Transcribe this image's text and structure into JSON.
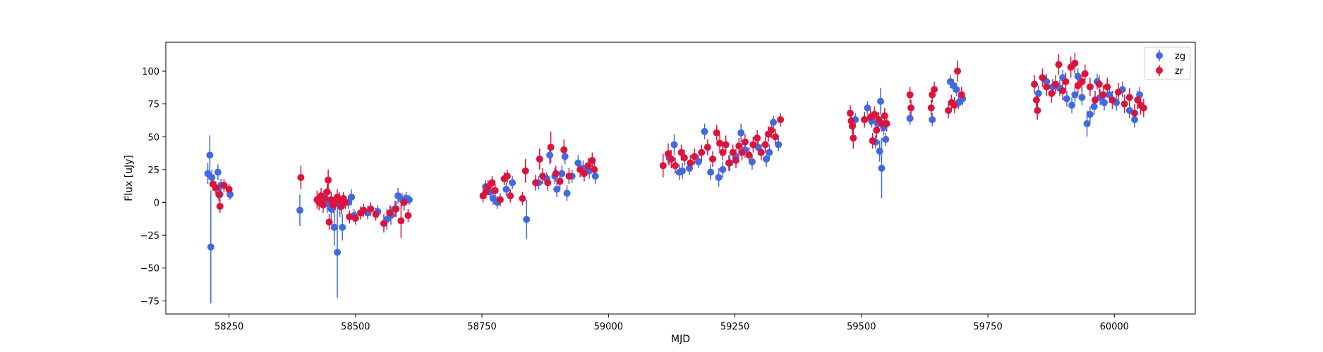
{
  "chart_data": {
    "type": "scatter",
    "title": "",
    "xlabel": "MJD",
    "ylabel": "Flux [uJy]",
    "xlim": [
      58125,
      60160
    ],
    "ylim": [
      -85,
      122
    ],
    "xticks": [
      58250,
      58500,
      58750,
      59000,
      59250,
      59500,
      59750,
      60000
    ],
    "yticks": [
      -75,
      -50,
      -25,
      0,
      25,
      50,
      75,
      100
    ],
    "grid": false,
    "legend_position": "top-right",
    "error_bars": true,
    "series": [
      {
        "name": "zg",
        "color": "#4169e1",
        "points": [
          [
            58208,
            22,
            8
          ],
          [
            58212,
            36,
            15
          ],
          [
            58214,
            -34,
            43
          ],
          [
            58216,
            19,
            6
          ],
          [
            58228,
            23,
            6
          ],
          [
            58232,
            6,
            5
          ],
          [
            58234,
            13,
            5
          ],
          [
            58252,
            6,
            4
          ],
          [
            58390,
            -6,
            12
          ],
          [
            58430,
            2,
            5
          ],
          [
            58437,
            3,
            6
          ],
          [
            58444,
            -1,
            7
          ],
          [
            58452,
            -5,
            8
          ],
          [
            58458,
            -19,
            14
          ],
          [
            58464,
            -38,
            35
          ],
          [
            58469,
            -3,
            8
          ],
          [
            58474,
            -19,
            10
          ],
          [
            58486,
            0,
            5
          ],
          [
            58492,
            4,
            6
          ],
          [
            58497,
            -10,
            5
          ],
          [
            58524,
            -8,
            5
          ],
          [
            58544,
            -7,
            5
          ],
          [
            58562,
            -13,
            8
          ],
          [
            58570,
            -10,
            7
          ],
          [
            58578,
            -5,
            6
          ],
          [
            58584,
            5,
            6
          ],
          [
            58592,
            2,
            5
          ],
          [
            58600,
            3,
            5
          ],
          [
            58606,
            2,
            4
          ],
          [
            58757,
            12,
            5
          ],
          [
            58766,
            8,
            5
          ],
          [
            58772,
            3,
            5
          ],
          [
            58780,
            0,
            5
          ],
          [
            58798,
            10,
            5
          ],
          [
            58810,
            15,
            5
          ],
          [
            58838,
            -13,
            15
          ],
          [
            58862,
            15,
            5
          ],
          [
            58878,
            18,
            5
          ],
          [
            58884,
            36,
            7
          ],
          [
            58894,
            20,
            6
          ],
          [
            58898,
            10,
            6
          ],
          [
            58908,
            22,
            6
          ],
          [
            58914,
            35,
            6
          ],
          [
            58918,
            7,
            6
          ],
          [
            58928,
            20,
            5
          ],
          [
            58940,
            30,
            6
          ],
          [
            58950,
            26,
            6
          ],
          [
            58962,
            24,
            6
          ],
          [
            58974,
            20,
            6
          ],
          [
            59120,
            34,
            6
          ],
          [
            59130,
            44,
            8
          ],
          [
            59140,
            23,
            6
          ],
          [
            59146,
            24,
            6
          ],
          [
            59160,
            26,
            5
          ],
          [
            59178,
            31,
            5
          ],
          [
            59190,
            54,
            6
          ],
          [
            59202,
            23,
            6
          ],
          [
            59218,
            19,
            7
          ],
          [
            59226,
            25,
            6
          ],
          [
            59240,
            30,
            6
          ],
          [
            59252,
            35,
            6
          ],
          [
            59262,
            53,
            7
          ],
          [
            59270,
            40,
            6
          ],
          [
            59284,
            31,
            6
          ],
          [
            59296,
            42,
            6
          ],
          [
            59312,
            33,
            6
          ],
          [
            59318,
            38,
            6
          ],
          [
            59326,
            61,
            5
          ],
          [
            59336,
            44,
            5
          ],
          [
            59488,
            63,
            5
          ],
          [
            59506,
            63,
            5
          ],
          [
            59512,
            72,
            5
          ],
          [
            59520,
            62,
            5
          ],
          [
            59528,
            46,
            5
          ],
          [
            59532,
            60,
            5
          ],
          [
            59536,
            39,
            8
          ],
          [
            59538,
            77,
            10
          ],
          [
            59540,
            26,
            23
          ],
          [
            59544,
            57,
            6
          ],
          [
            59548,
            48,
            5
          ],
          [
            59596,
            64,
            5
          ],
          [
            59640,
            63,
            5
          ],
          [
            59676,
            92,
            5
          ],
          [
            59682,
            89,
            5
          ],
          [
            59688,
            86,
            5
          ],
          [
            59692,
            76,
            5
          ],
          [
            59700,
            79,
            5
          ],
          [
            59850,
            83,
            6
          ],
          [
            59866,
            92,
            6
          ],
          [
            59878,
            88,
            6
          ],
          [
            59892,
            87,
            6
          ],
          [
            59898,
            95,
            6
          ],
          [
            59906,
            79,
            6
          ],
          [
            59916,
            74,
            6
          ],
          [
            59922,
            82,
            6
          ],
          [
            59928,
            96,
            6
          ],
          [
            59936,
            80,
            6
          ],
          [
            59946,
            60,
            10
          ],
          [
            59952,
            67,
            6
          ],
          [
            59960,
            73,
            6
          ],
          [
            59966,
            92,
            6
          ],
          [
            59972,
            80,
            6
          ],
          [
            59980,
            76,
            6
          ],
          [
            59990,
            82,
            6
          ],
          [
            60004,
            76,
            6
          ],
          [
            60016,
            86,
            6
          ],
          [
            60030,
            70,
            6
          ],
          [
            60040,
            63,
            6
          ],
          [
            60050,
            82,
            6
          ]
        ]
      },
      {
        "name": "zr",
        "color": "#dc143c",
        "points": [
          [
            58218,
            14,
            5
          ],
          [
            58224,
            11,
            5
          ],
          [
            58230,
            6,
            5
          ],
          [
            58232,
            -3,
            5
          ],
          [
            58240,
            13,
            5
          ],
          [
            58250,
            10,
            4
          ],
          [
            58392,
            19,
            9
          ],
          [
            58424,
            2,
            7
          ],
          [
            58428,
            0,
            6
          ],
          [
            58432,
            5,
            6
          ],
          [
            58436,
            -2,
            6
          ],
          [
            58440,
            3,
            6
          ],
          [
            58444,
            8,
            6
          ],
          [
            58446,
            17,
            8
          ],
          [
            58448,
            -15,
            6
          ],
          [
            58452,
            2,
            6
          ],
          [
            58456,
            -2,
            6
          ],
          [
            58460,
            0,
            6
          ],
          [
            58464,
            4,
            6
          ],
          [
            58468,
            2,
            6
          ],
          [
            58472,
            -3,
            6
          ],
          [
            58476,
            3,
            5
          ],
          [
            58480,
            0,
            5
          ],
          [
            58488,
            -11,
            5
          ],
          [
            58500,
            -12,
            5
          ],
          [
            58510,
            -8,
            5
          ],
          [
            58516,
            -6,
            5
          ],
          [
            58530,
            -5,
            5
          ],
          [
            58540,
            -9,
            5
          ],
          [
            58556,
            -16,
            7
          ],
          [
            58568,
            -8,
            6
          ],
          [
            58580,
            -5,
            6
          ],
          [
            58590,
            -14,
            13
          ],
          [
            58596,
            0,
            6
          ],
          [
            58604,
            -10,
            5
          ],
          [
            58752,
            5,
            5
          ],
          [
            58758,
            8,
            5
          ],
          [
            58762,
            12,
            5
          ],
          [
            58770,
            15,
            5
          ],
          [
            58776,
            9,
            5
          ],
          [
            58786,
            2,
            5
          ],
          [
            58794,
            18,
            5
          ],
          [
            58800,
            20,
            5
          ],
          [
            58806,
            5,
            5
          ],
          [
            58830,
            3,
            5
          ],
          [
            58836,
            24,
            9
          ],
          [
            58856,
            15,
            6
          ],
          [
            58864,
            33,
            8
          ],
          [
            58870,
            20,
            6
          ],
          [
            58880,
            15,
            6
          ],
          [
            58886,
            42,
            12
          ],
          [
            58896,
            22,
            6
          ],
          [
            58904,
            16,
            6
          ],
          [
            58912,
            40,
            8
          ],
          [
            58922,
            20,
            6
          ],
          [
            58944,
            25,
            6
          ],
          [
            58952,
            22,
            6
          ],
          [
            58960,
            28,
            6
          ],
          [
            58968,
            32,
            6
          ],
          [
            58972,
            25,
            6
          ],
          [
            59108,
            28,
            9
          ],
          [
            59118,
            37,
            8
          ],
          [
            59124,
            33,
            7
          ],
          [
            59132,
            28,
            6
          ],
          [
            59144,
            38,
            6
          ],
          [
            59150,
            34,
            6
          ],
          [
            59162,
            30,
            6
          ],
          [
            59170,
            35,
            6
          ],
          [
            59184,
            38,
            6
          ],
          [
            59196,
            42,
            6
          ],
          [
            59206,
            33,
            6
          ],
          [
            59214,
            53,
            6
          ],
          [
            59220,
            45,
            7
          ],
          [
            59226,
            38,
            6
          ],
          [
            59232,
            44,
            7
          ],
          [
            59238,
            30,
            6
          ],
          [
            59246,
            38,
            6
          ],
          [
            59252,
            32,
            6
          ],
          [
            59258,
            43,
            6
          ],
          [
            59264,
            38,
            6
          ],
          [
            59270,
            46,
            6
          ],
          [
            59278,
            36,
            6
          ],
          [
            59286,
            44,
            6
          ],
          [
            59294,
            49,
            6
          ],
          [
            59302,
            38,
            6
          ],
          [
            59310,
            44,
            6
          ],
          [
            59316,
            52,
            6
          ],
          [
            59322,
            55,
            6
          ],
          [
            59330,
            50,
            6
          ],
          [
            59340,
            63,
            5
          ],
          [
            59478,
            68,
            6
          ],
          [
            59480,
            62,
            6
          ],
          [
            59482,
            58,
            6
          ],
          [
            59484,
            49,
            8
          ],
          [
            59506,
            63,
            6
          ],
          [
            59518,
            65,
            6
          ],
          [
            59522,
            47,
            6
          ],
          [
            59526,
            67,
            6
          ],
          [
            59530,
            55,
            6
          ],
          [
            59534,
            63,
            6
          ],
          [
            59540,
            60,
            6
          ],
          [
            59546,
            66,
            6
          ],
          [
            59550,
            60,
            6
          ],
          [
            59596,
            82,
            6
          ],
          [
            59598,
            72,
            6
          ],
          [
            59638,
            72,
            6
          ],
          [
            59640,
            82,
            6
          ],
          [
            59644,
            86,
            6
          ],
          [
            59672,
            70,
            6
          ],
          [
            59678,
            76,
            6
          ],
          [
            59684,
            74,
            6
          ],
          [
            59690,
            100,
            8
          ],
          [
            59698,
            82,
            6
          ],
          [
            59842,
            90,
            7
          ],
          [
            59846,
            78,
            7
          ],
          [
            59848,
            70,
            7
          ],
          [
            59858,
            95,
            7
          ],
          [
            59866,
            88,
            7
          ],
          [
            59876,
            83,
            7
          ],
          [
            59884,
            90,
            7
          ],
          [
            59890,
            105,
            8
          ],
          [
            59898,
            85,
            7
          ],
          [
            59904,
            92,
            7
          ],
          [
            59914,
            103,
            8
          ],
          [
            59922,
            106,
            8
          ],
          [
            59928,
            89,
            7
          ],
          [
            59936,
            92,
            7
          ],
          [
            59942,
            98,
            7
          ],
          [
            59952,
            88,
            7
          ],
          [
            59962,
            78,
            7
          ],
          [
            59970,
            90,
            7
          ],
          [
            59978,
            82,
            7
          ],
          [
            59986,
            88,
            7
          ],
          [
            59996,
            78,
            7
          ],
          [
            60008,
            84,
            7
          ],
          [
            60020,
            75,
            7
          ],
          [
            60030,
            80,
            7
          ],
          [
            60040,
            68,
            7
          ],
          [
            60046,
            78,
            7
          ],
          [
            60052,
            74,
            7
          ],
          [
            60058,
            72,
            7
          ]
        ]
      }
    ]
  }
}
